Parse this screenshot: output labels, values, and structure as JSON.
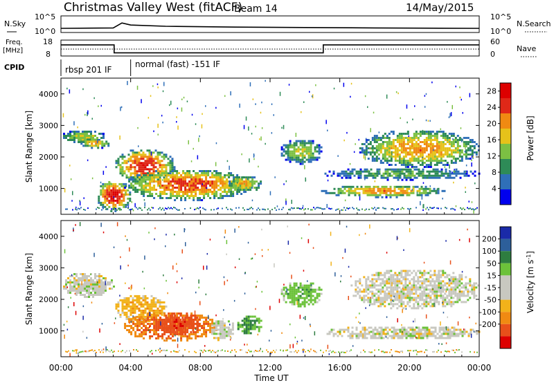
{
  "header": {
    "title": "Christmas Valley West (fitACF)",
    "beam": "Beam 14",
    "date": "14/May/2015"
  },
  "noise_panel": {
    "left_label": "N.Sky",
    "left_ticks": [
      "10^5",
      "10^0"
    ],
    "right_ticks": [
      "10^5",
      "10^0"
    ],
    "right_label": "N.Search"
  },
  "freq_panel": {
    "left_label_1": "Freq.",
    "left_label_2": "[MHz]",
    "left_ticks": [
      "18",
      "8"
    ],
    "right_ticks": [
      "60",
      "0"
    ],
    "right_label": "Nave"
  },
  "cpid_panel": {
    "label": "CPID",
    "modes": [
      "rbsp 201 IF",
      "normal (fast) -151 IF"
    ],
    "mode_change_hour": 4.0
  },
  "colors": {
    "power_scale": [
      "#0000ee",
      "#2f6fb8",
      "#2e8b57",
      "#7cc043",
      "#e6c21a",
      "#f08a12",
      "#e02818",
      "#dd0000"
    ],
    "velocity_scale": [
      "#1a2aa8",
      "#2d5f9a",
      "#2e7d40",
      "#6cc23a",
      "#c8c8c0",
      "#c8c8c0",
      "#f2b21a",
      "#f08a12",
      "#e8501a",
      "#dd0000"
    ]
  },
  "chart_data": [
    {
      "type": "line",
      "name": "noise-search",
      "x": [
        0,
        1,
        2,
        3,
        3.5,
        4,
        5,
        6,
        8,
        10,
        12,
        14,
        16,
        18,
        20,
        22,
        24
      ],
      "values": [
        {
          "x": 0,
          "y": 1.0
        },
        {
          "x": 3,
          "y": 1.1
        },
        {
          "x": 3.5,
          "y": 2.3
        },
        {
          "x": 4,
          "y": 1.8
        },
        {
          "x": 6,
          "y": 1.5
        },
        {
          "x": 10,
          "y": 1.3
        },
        {
          "x": 14,
          "y": 1.2
        },
        {
          "x": 18,
          "y": 1.1
        },
        {
          "x": 24,
          "y": 1.0
        }
      ]
    },
    {
      "type": "line",
      "name": "frequency",
      "ylim": [
        8,
        18
      ],
      "points": [
        [
          0,
          15
        ],
        [
          3.05,
          15
        ],
        [
          3.05,
          10
        ],
        [
          15.05,
          10
        ],
        [
          15.05,
          15
        ],
        [
          24,
          15
        ]
      ]
    },
    {
      "type": "heatmap",
      "name": "power",
      "xlabel": "",
      "ylabel": "Slant Range [km]",
      "xlim": [
        0,
        24
      ],
      "ylim": [
        180,
        4500
      ],
      "y_ticks": [
        1000,
        2000,
        3000,
        4000
      ],
      "colorbar": {
        "label": "Power [dB]",
        "ticks": [
          4,
          8,
          12,
          16,
          20,
          24,
          28
        ],
        "range": [
          0,
          30
        ]
      },
      "regions": [
        {
          "x0": 0.0,
          "x1": 2.5,
          "r0": 2450,
          "r1": 2900,
          "level": 0.45
        },
        {
          "x0": 1.0,
          "x1": 2.8,
          "r0": 2300,
          "r1": 2650,
          "level": 0.55
        },
        {
          "x0": 3.0,
          "x1": 6.5,
          "r0": 1200,
          "r1": 2300,
          "level": 0.75
        },
        {
          "x0": 2.0,
          "x1": 4.0,
          "r0": 300,
          "r1": 1300,
          "level": 0.8
        },
        {
          "x0": 3.5,
          "x1": 11.0,
          "r0": 650,
          "r1": 1650,
          "level": 0.7
        },
        {
          "x0": 9.5,
          "x1": 11.5,
          "r0": 900,
          "r1": 1450,
          "level": 0.55
        },
        {
          "x0": 12.5,
          "x1": 15.0,
          "r0": 1800,
          "r1": 2600,
          "level": 0.45
        },
        {
          "x0": 14.8,
          "x1": 22.0,
          "r0": 750,
          "r1": 1150,
          "level": 0.6
        },
        {
          "x0": 17.0,
          "x1": 24.0,
          "r0": 1700,
          "r1": 2900,
          "level": 0.6
        },
        {
          "x0": 15.0,
          "x1": 24.0,
          "r0": 1300,
          "r1": 1700,
          "level": 0.35
        }
      ]
    },
    {
      "type": "heatmap",
      "name": "velocity",
      "xlabel": "Time UT",
      "ylabel": "Slant Range [km]",
      "xlim": [
        0,
        24
      ],
      "ylim": [
        180,
        4500
      ],
      "x_ticks": [
        "00:00",
        "04:00",
        "08:00",
        "12:00",
        "16:00",
        "20:00",
        "00:00"
      ],
      "y_ticks": [
        1000,
        2000,
        3000,
        4000
      ],
      "colorbar": {
        "label": "Velocity [m s^-1]",
        "ticks": [
          200,
          100,
          50,
          15,
          -15,
          -50,
          -100,
          -200
        ],
        "range": [
          -250,
          250
        ]
      },
      "regions": [
        {
          "x0": 0.0,
          "x1": 3.0,
          "r0": 2100,
          "r1": 2900,
          "v": 0
        },
        {
          "x0": 3.0,
          "x1": 6.0,
          "r0": 1300,
          "r1": 2200,
          "v": -40
        },
        {
          "x0": 3.5,
          "x1": 9.0,
          "r0": 700,
          "r1": 1650,
          "v": -120
        },
        {
          "x0": 5.5,
          "x1": 8.0,
          "r0": 900,
          "r1": 1650,
          "v": -200
        },
        {
          "x0": 8.5,
          "x1": 10.0,
          "r0": 700,
          "r1": 1400,
          "v": 0
        },
        {
          "x0": 10.0,
          "x1": 11.5,
          "r0": 900,
          "r1": 1550,
          "v": 60
        },
        {
          "x0": 12.5,
          "x1": 15.0,
          "r0": 1800,
          "r1": 2600,
          "v": 40
        },
        {
          "x0": 15.0,
          "x1": 24.0,
          "r0": 750,
          "r1": 1200,
          "v": 0
        },
        {
          "x0": 16.5,
          "x1": 24.0,
          "r0": 1700,
          "r1": 3000,
          "v": 0
        }
      ]
    }
  ],
  "axes_labels": {
    "power_ylabel": "Slant Range [km]",
    "velocity_ylabel": "Slant Range [km]",
    "xlabel": "Time UT",
    "power_cb_label": "Power [dB]",
    "velocity_cb_label": "Velocity [m s",
    "velocity_cb_label_sup": "-1",
    "velocity_cb_label_end": "]"
  }
}
